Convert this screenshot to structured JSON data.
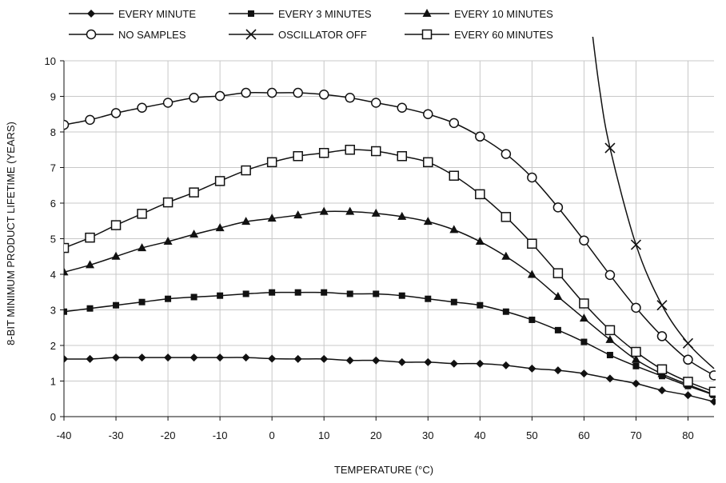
{
  "chart_data": {
    "type": "line",
    "title": "",
    "xlabel": "TEMPERATURE (°C)",
    "ylabel": "8-BIT MINIMUM PRODUCT LIFETIME (YEARS)",
    "xlim": [
      -40,
      85
    ],
    "ylim": [
      0,
      10
    ],
    "xticks": [
      -40,
      -30,
      -20,
      -10,
      0,
      10,
      20,
      30,
      40,
      50,
      60,
      70,
      80
    ],
    "yticks": [
      0,
      1,
      2,
      3,
      4,
      5,
      6,
      7,
      8,
      9,
      10
    ],
    "grid": true,
    "legend_position": "top",
    "series": [
      {
        "name": "EVERY MINUTE",
        "marker": "diamond-filled",
        "x": [
          -40,
          -35,
          -30,
          -25,
          -20,
          -15,
          -10,
          -5,
          0,
          5,
          10,
          15,
          20,
          25,
          30,
          35,
          40,
          45,
          50,
          55,
          60,
          65,
          70,
          75,
          80,
          85
        ],
        "y": [
          1.62,
          1.62,
          1.66,
          1.66,
          1.66,
          1.66,
          1.66,
          1.66,
          1.63,
          1.62,
          1.62,
          1.58,
          1.58,
          1.53,
          1.53,
          1.49,
          1.49,
          1.44,
          1.35,
          1.3,
          1.21,
          1.07,
          0.93,
          0.74,
          0.6,
          0.42
        ]
      },
      {
        "name": "EVERY 3 MINUTES",
        "marker": "square-filled",
        "x": [
          -40,
          -35,
          -30,
          -25,
          -20,
          -15,
          -10,
          -5,
          0,
          5,
          10,
          15,
          20,
          25,
          30,
          35,
          40,
          45,
          50,
          55,
          60,
          65,
          70,
          75,
          80,
          85
        ],
        "y": [
          2.95,
          3.04,
          3.13,
          3.22,
          3.31,
          3.36,
          3.4,
          3.45,
          3.49,
          3.49,
          3.49,
          3.45,
          3.45,
          3.4,
          3.31,
          3.22,
          3.13,
          2.95,
          2.72,
          2.43,
          2.1,
          1.73,
          1.42,
          1.14,
          0.86,
          0.61
        ]
      },
      {
        "name": "EVERY 10 MINUTES",
        "marker": "triangle-filled",
        "x": [
          -40,
          -35,
          -30,
          -25,
          -20,
          -15,
          -10,
          -5,
          0,
          5,
          10,
          15,
          20,
          25,
          30,
          35,
          40,
          45,
          50,
          55,
          60,
          65,
          70,
          75,
          80,
          85
        ],
        "y": [
          4.06,
          4.26,
          4.5,
          4.74,
          4.92,
          5.12,
          5.3,
          5.48,
          5.57,
          5.66,
          5.76,
          5.76,
          5.71,
          5.62,
          5.48,
          5.25,
          4.92,
          4.5,
          3.99,
          3.37,
          2.76,
          2.16,
          1.6,
          1.2,
          0.9,
          0.62
        ]
      },
      {
        "name": "NO SAMPLES",
        "marker": "circle-open",
        "x": [
          -40,
          -35,
          -30,
          -25,
          -20,
          -15,
          -10,
          -5,
          0,
          5,
          10,
          15,
          20,
          25,
          30,
          35,
          40,
          45,
          50,
          55,
          60,
          65,
          70,
          75,
          80,
          85
        ],
        "y": [
          8.2,
          8.34,
          8.53,
          8.68,
          8.82,
          8.96,
          9.01,
          9.1,
          9.1,
          9.1,
          9.05,
          8.96,
          8.82,
          8.68,
          8.5,
          8.25,
          7.87,
          7.38,
          6.72,
          5.88,
          4.95,
          3.98,
          3.06,
          2.26,
          1.6,
          1.16
        ]
      },
      {
        "name": "OSCILLATOR OFF",
        "marker": "x",
        "x": [
          65,
          70,
          75,
          80
        ],
        "y": [
          7.55,
          4.83,
          3.13,
          2.06
        ]
      },
      {
        "name": "EVERY 60 MINUTES",
        "marker": "square-open",
        "x": [
          -40,
          -35,
          -30,
          -25,
          -20,
          -15,
          -10,
          -5,
          0,
          5,
          10,
          15,
          20,
          25,
          30,
          35,
          40,
          45,
          50,
          55,
          60,
          65,
          70,
          75,
          80,
          85
        ],
        "y": [
          4.74,
          5.03,
          5.38,
          5.7,
          6.02,
          6.3,
          6.62,
          6.92,
          7.15,
          7.32,
          7.41,
          7.5,
          7.46,
          7.32,
          7.15,
          6.77,
          6.25,
          5.61,
          4.86,
          4.03,
          3.18,
          2.43,
          1.82,
          1.33,
          0.98,
          0.7
        ]
      }
    ]
  }
}
